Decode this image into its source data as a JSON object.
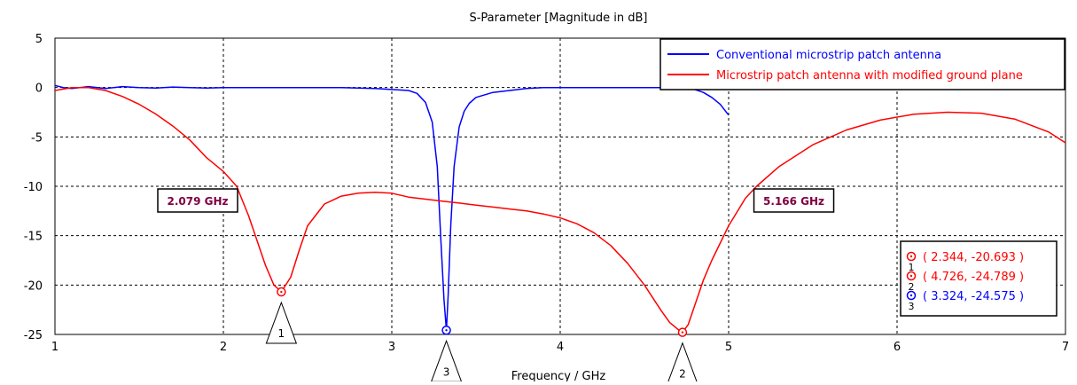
{
  "chart_data": {
    "type": "line",
    "title": "S-Parameter [Magnitude in dB]",
    "xlabel": "Frequency / GHz",
    "ylabel": "",
    "xlim": [
      1,
      7
    ],
    "ylim": [
      -25,
      5
    ],
    "xticks": [
      1,
      2,
      3,
      4,
      5,
      6,
      7
    ],
    "yticks": [
      5,
      0,
      -5,
      -10,
      -15,
      -20,
      -25
    ],
    "grid": true,
    "legend_position": "top-right",
    "series": [
      {
        "name": "Conventional microstrip patch antenna",
        "color": "#0000ff",
        "x": [
          1.0,
          1.05,
          1.1,
          1.2,
          1.3,
          1.4,
          1.5,
          1.6,
          1.7,
          1.8,
          1.9,
          2.0,
          2.1,
          2.2,
          2.3,
          2.4,
          2.5,
          2.6,
          2.7,
          2.8,
          2.9,
          3.0,
          3.1,
          3.15,
          3.2,
          3.24,
          3.27,
          3.29,
          3.31,
          3.324,
          3.335,
          3.35,
          3.37,
          3.4,
          3.43,
          3.46,
          3.5,
          3.6,
          3.7,
          3.8,
          3.9,
          4.0,
          4.1,
          4.2,
          4.3,
          4.4,
          4.5,
          4.6,
          4.7,
          4.8,
          4.85,
          4.9,
          4.95,
          5.0
        ],
        "values": [
          0.2,
          0.0,
          -0.1,
          0.1,
          -0.1,
          0.1,
          0.0,
          -0.05,
          0.05,
          0.0,
          -0.05,
          0.0,
          0.0,
          0.0,
          0.0,
          0.0,
          0.0,
          0.0,
          0.0,
          -0.05,
          -0.1,
          -0.2,
          -0.3,
          -0.6,
          -1.5,
          -3.5,
          -8.0,
          -15.0,
          -21.5,
          -24.575,
          -21.0,
          -14.0,
          -8.0,
          -4.0,
          -2.4,
          -1.6,
          -1.0,
          -0.5,
          -0.3,
          -0.1,
          0.0,
          0.0,
          0.0,
          0.0,
          0.0,
          0.0,
          0.0,
          0.0,
          0.0,
          -0.2,
          -0.5,
          -1.0,
          -1.7,
          -2.8
        ]
      },
      {
        "name": "Microstrip patch antenna with modified ground plane",
        "color": "#ff0000",
        "x": [
          1.0,
          1.1,
          1.2,
          1.3,
          1.4,
          1.5,
          1.6,
          1.7,
          1.8,
          1.9,
          2.0,
          2.079,
          2.15,
          2.2,
          2.25,
          2.3,
          2.344,
          2.4,
          2.45,
          2.5,
          2.6,
          2.7,
          2.8,
          2.9,
          3.0,
          3.1,
          3.2,
          3.3,
          3.4,
          3.5,
          3.6,
          3.7,
          3.8,
          3.9,
          4.0,
          4.1,
          4.2,
          4.3,
          4.4,
          4.5,
          4.55,
          4.6,
          4.65,
          4.7,
          4.726,
          4.76,
          4.8,
          4.85,
          4.9,
          5.0,
          5.1,
          5.166,
          5.3,
          5.5,
          5.7,
          5.9,
          6.1,
          6.3,
          6.5,
          6.7,
          6.9,
          7.0
        ],
        "values": [
          -0.3,
          0.0,
          0.0,
          -0.3,
          -0.9,
          -1.7,
          -2.7,
          -3.9,
          -5.3,
          -7.1,
          -8.5,
          -10.0,
          -13.0,
          -15.5,
          -18.0,
          -20.0,
          -20.693,
          -19.2,
          -16.5,
          -14.0,
          -11.8,
          -11.0,
          -10.7,
          -10.6,
          -10.7,
          -11.1,
          -11.3,
          -11.5,
          -11.7,
          -11.9,
          -12.1,
          -12.3,
          -12.5,
          -12.8,
          -13.2,
          -13.8,
          -14.7,
          -16.0,
          -17.8,
          -20.0,
          -21.3,
          -22.6,
          -23.8,
          -24.5,
          -24.789,
          -24.0,
          -22.0,
          -19.5,
          -17.5,
          -14.0,
          -11.2,
          -10.0,
          -8.0,
          -5.8,
          -4.3,
          -3.3,
          -2.7,
          -2.5,
          -2.6,
          -3.2,
          -4.5,
          -5.6
        ]
      }
    ],
    "threshold_labels": [
      {
        "text": "2.079 GHz",
        "x": 2.079,
        "y": -10
      },
      {
        "text": "5.166 GHz",
        "x": 5.166,
        "y": -10
      }
    ],
    "markers": [
      {
        "id": "1",
        "x": 2.344,
        "y": -20.693,
        "series": 1,
        "color": "#ff0000",
        "readout": "( 2.344, -20.693 )"
      },
      {
        "id": "2",
        "x": 4.726,
        "y": -24.789,
        "series": 1,
        "color": "#ff0000",
        "readout": "( 4.726, -24.789 )"
      },
      {
        "id": "3",
        "x": 3.324,
        "y": -24.575,
        "series": 0,
        "color": "#0000ff",
        "readout": "( 3.324, -24.575 )"
      }
    ]
  }
}
